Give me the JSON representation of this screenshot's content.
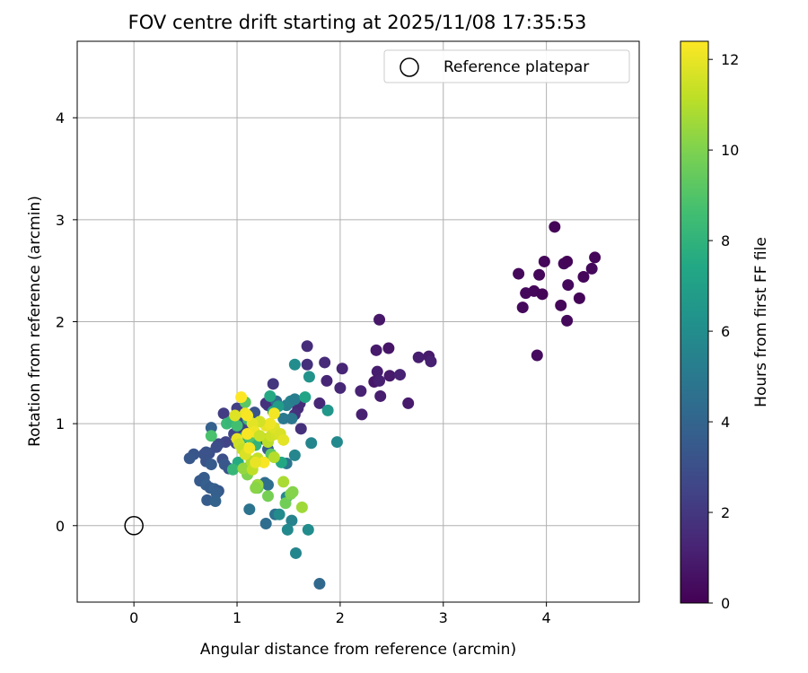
{
  "chart_data": {
    "type": "scatter",
    "title": "FOV centre drift starting at 2025/11/08 17:35:53",
    "xlabel": "Angular distance from reference (arcmin)",
    "ylabel": "Rotation from reference (arcmin)",
    "xlim": [
      -0.55,
      4.9
    ],
    "ylim": [
      -0.75,
      4.75
    ],
    "xticks": [
      0,
      1,
      2,
      3,
      4
    ],
    "yticks": [
      0,
      1,
      2,
      3,
      4
    ],
    "grid": true,
    "legend": {
      "placement": "top-right",
      "entries": [
        "Reference platepar"
      ]
    },
    "reference_point": {
      "x": 0,
      "y": 0,
      "label": "Reference platepar"
    },
    "colorbar": {
      "label": "Hours from first FF file",
      "colormap": "viridis",
      "range": [
        0,
        12.4
      ],
      "ticks": [
        0,
        2,
        4,
        6,
        8,
        10,
        12
      ]
    },
    "points": [
      [
        4.08,
        2.93,
        0.1
      ],
      [
        3.98,
        2.59,
        0.2
      ],
      [
        3.73,
        2.47,
        0.3
      ],
      [
        3.93,
        2.46,
        0.2
      ],
      [
        3.8,
        2.28,
        0.3
      ],
      [
        3.88,
        2.3,
        0.2
      ],
      [
        3.96,
        2.27,
        0.1
      ],
      [
        3.77,
        2.14,
        0.3
      ],
      [
        4.17,
        2.57,
        0.2
      ],
      [
        4.2,
        2.59,
        0.1
      ],
      [
        4.47,
        2.63,
        0.2
      ],
      [
        4.44,
        2.52,
        0.3
      ],
      [
        4.36,
        2.44,
        0.2
      ],
      [
        4.21,
        2.36,
        0.3
      ],
      [
        4.32,
        2.23,
        0.1
      ],
      [
        4.14,
        2.16,
        0.2
      ],
      [
        4.2,
        2.01,
        0.3
      ],
      [
        3.91,
        1.67,
        0.4
      ],
      [
        2.38,
        2.02,
        0.8
      ],
      [
        2.35,
        1.72,
        0.9
      ],
      [
        2.47,
        1.74,
        0.7
      ],
      [
        2.76,
        1.65,
        1.0
      ],
      [
        2.86,
        1.66,
        0.9
      ],
      [
        2.88,
        1.61,
        1.1
      ],
      [
        2.36,
        1.51,
        1.0
      ],
      [
        2.48,
        1.47,
        0.9
      ],
      [
        2.58,
        1.48,
        1.2
      ],
      [
        2.33,
        1.41,
        0.8
      ],
      [
        2.38,
        1.42,
        1.1
      ],
      [
        2.39,
        1.27,
        1.0
      ],
      [
        2.66,
        1.2,
        0.9
      ],
      [
        2.2,
        1.32,
        1.2
      ],
      [
        2.21,
        1.09,
        1.1
      ],
      [
        2.02,
        1.54,
        1.3
      ],
      [
        2.0,
        1.35,
        1.4
      ],
      [
        1.85,
        1.6,
        1.5
      ],
      [
        1.87,
        1.42,
        1.3
      ],
      [
        1.8,
        1.2,
        1.4
      ],
      [
        1.68,
        1.76,
        1.6
      ],
      [
        1.68,
        1.58,
        1.7
      ],
      [
        1.61,
        1.2,
        1.5
      ],
      [
        1.59,
        1.15,
        1.6
      ],
      [
        1.56,
        1.09,
        1.8
      ],
      [
        1.62,
        0.95,
        1.7
      ],
      [
        1.35,
        1.39,
        1.9
      ],
      [
        1.3,
        1.18,
        2.0
      ],
      [
        1.28,
        1.2,
        1.8
      ],
      [
        0.87,
        1.1,
        2.2
      ],
      [
        1.0,
        1.15,
        2.3
      ],
      [
        1.02,
        0.95,
        2.1
      ],
      [
        1.07,
        0.97,
        2.4
      ],
      [
        0.97,
        0.9,
        2.6
      ],
      [
        0.99,
        0.81,
        2.8
      ],
      [
        0.89,
        0.82,
        2.5
      ],
      [
        0.82,
        0.8,
        2.7
      ],
      [
        0.8,
        0.77,
        2.9
      ],
      [
        0.73,
        0.71,
        3.0
      ],
      [
        0.7,
        0.72,
        3.2
      ],
      [
        0.68,
        0.7,
        3.1
      ],
      [
        0.58,
        0.7,
        3.3
      ],
      [
        0.54,
        0.66,
        3.4
      ],
      [
        0.7,
        0.63,
        3.2
      ],
      [
        0.75,
        0.6,
        3.5
      ],
      [
        0.86,
        0.65,
        3.0
      ],
      [
        0.88,
        0.6,
        3.4
      ],
      [
        0.92,
        0.56,
        3.3
      ],
      [
        0.68,
        0.47,
        3.6
      ],
      [
        0.64,
        0.44,
        3.5
      ],
      [
        0.7,
        0.4,
        3.7
      ],
      [
        0.74,
        0.37,
        3.6
      ],
      [
        0.78,
        0.36,
        3.8
      ],
      [
        0.82,
        0.34,
        3.4
      ],
      [
        0.8,
        0.32,
        3.7
      ],
      [
        0.71,
        0.25,
        3.6
      ],
      [
        0.79,
        0.24,
        3.9
      ],
      [
        0.75,
        0.96,
        3.8
      ],
      [
        1.05,
        1.05,
        3.0
      ],
      [
        1.17,
        1.11,
        3.2
      ],
      [
        1.15,
        0.9,
        3.3
      ],
      [
        1.25,
        0.85,
        3.5
      ],
      [
        1.3,
        0.75,
        3.6
      ],
      [
        1.2,
        0.4,
        4.2
      ],
      [
        1.27,
        0.42,
        4.3
      ],
      [
        1.3,
        0.4,
        4.5
      ],
      [
        1.12,
        0.16,
        4.7
      ],
      [
        1.28,
        0.02,
        4.4
      ],
      [
        1.37,
        0.11,
        4.6
      ],
      [
        1.48,
        0.61,
        4.8
      ],
      [
        1.45,
        1.05,
        5.0
      ],
      [
        1.38,
        1.22,
        4.4
      ],
      [
        1.53,
        1.05,
        4.9
      ],
      [
        1.48,
        1.18,
        5.3
      ],
      [
        1.52,
        1.22,
        5.5
      ],
      [
        1.56,
        1.24,
        5.2
      ],
      [
        1.56,
        0.69,
        5.7
      ],
      [
        1.72,
        0.81,
        5.6
      ],
      [
        1.41,
        0.11,
        5.9
      ],
      [
        1.48,
        0.28,
        5.8
      ],
      [
        1.53,
        0.05,
        5.5
      ],
      [
        1.49,
        -0.04,
        5.8
      ],
      [
        1.57,
        -0.27,
        5.6
      ],
      [
        1.8,
        -0.57,
        4.2
      ],
      [
        1.97,
        0.82,
        5.8
      ],
      [
        1.69,
        -0.04,
        6.0
      ],
      [
        1.56,
        1.58,
        6.0
      ],
      [
        1.7,
        1.46,
        6.3
      ],
      [
        1.88,
        1.13,
        6.5
      ],
      [
        1.66,
        1.26,
        7.2
      ],
      [
        1.4,
        1.17,
        6.8
      ],
      [
        1.32,
        1.27,
        7.5
      ],
      [
        1.35,
        1.12,
        7.0
      ],
      [
        1.43,
        0.62,
        7.4
      ],
      [
        1.18,
        0.79,
        8.0
      ],
      [
        1.06,
        0.86,
        7.8
      ],
      [
        1.01,
        0.62,
        7.6
      ],
      [
        1.08,
        0.56,
        7.9
      ],
      [
        0.96,
        0.55,
        8.2
      ],
      [
        0.9,
        1.0,
        8.4
      ],
      [
        0.94,
        1.02,
        8.2
      ],
      [
        1.0,
        0.98,
        8.6
      ],
      [
        1.11,
        1.04,
        8.3
      ],
      [
        1.12,
        0.87,
        9.0
      ],
      [
        0.75,
        0.88,
        8.8
      ],
      [
        1.08,
        1.21,
        9.2
      ],
      [
        1.2,
        0.37,
        9.5
      ],
      [
        1.3,
        0.29,
        9.8
      ],
      [
        1.33,
        0.7,
        9.2
      ],
      [
        1.47,
        0.22,
        9.7
      ],
      [
        1.52,
        0.31,
        10.0
      ],
      [
        1.54,
        0.33,
        10.1
      ],
      [
        1.63,
        0.18,
        10.6
      ],
      [
        1.45,
        0.43,
        10.8
      ],
      [
        1.2,
        0.4,
        10.5
      ],
      [
        1.18,
        0.37,
        10.2
      ],
      [
        1.1,
        0.5,
        10.0
      ],
      [
        1.06,
        0.56,
        10.4
      ],
      [
        1.14,
        0.63,
        10.9
      ],
      [
        1.15,
        0.55,
        11.2
      ],
      [
        1.2,
        0.66,
        11.3
      ],
      [
        1.36,
        0.67,
        11.0
      ],
      [
        1.3,
        0.82,
        11.1
      ],
      [
        1.33,
        0.88,
        11.5
      ],
      [
        1.38,
        0.9,
        11.6
      ],
      [
        1.36,
        0.96,
        11.8
      ],
      [
        1.42,
        0.9,
        11.7
      ],
      [
        1.45,
        0.84,
        11.9
      ],
      [
        1.28,
        0.98,
        12.0
      ],
      [
        1.32,
        1.0,
        12.1
      ],
      [
        1.36,
        1.1,
        12.2
      ],
      [
        1.22,
        1.02,
        11.6
      ],
      [
        1.15,
        1.0,
        11.9
      ],
      [
        1.08,
        1.1,
        12.1
      ],
      [
        1.1,
        1.08,
        12.3
      ],
      [
        1.04,
        1.26,
        12.4
      ],
      [
        0.98,
        1.08,
        11.8
      ],
      [
        1.0,
        0.85,
        12.0
      ],
      [
        1.02,
        0.8,
        11.5
      ],
      [
        1.05,
        0.75,
        11.3
      ],
      [
        1.08,
        0.7,
        11.7
      ],
      [
        1.12,
        0.76,
        12.2
      ],
      [
        1.17,
        0.92,
        12.1
      ],
      [
        1.22,
        0.88,
        11.4
      ],
      [
        1.26,
        0.62,
        12.3
      ],
      [
        1.18,
        0.62,
        12.0
      ],
      [
        1.1,
        0.9,
        12.3
      ]
    ]
  }
}
